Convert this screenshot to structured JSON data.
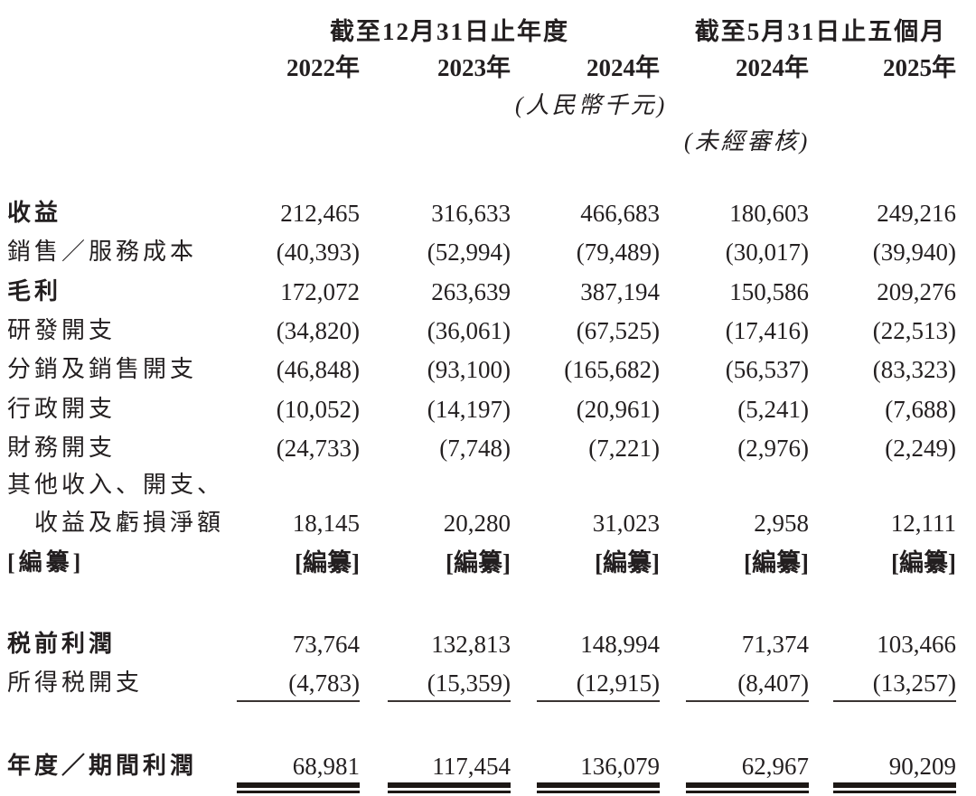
{
  "colors": {
    "text": "#231f20",
    "background": "#ffffff",
    "rule": "#1d1815"
  },
  "table": {
    "group_headers": [
      {
        "label": "截至12月31日止年度",
        "spans_columns": 3
      },
      {
        "label": "截至5月31日止五個月",
        "spans_columns": 2
      }
    ],
    "year_headers": [
      "2022年",
      "2023年",
      "2024年",
      "2024年",
      "2025年"
    ],
    "unit_note": "(人民幣千元)",
    "unaudited_note": "(未經審核)",
    "rows": [
      {
        "label": "收益",
        "bold": true,
        "values": [
          "212,465",
          "316,633",
          "466,683",
          "180,603",
          "249,216"
        ]
      },
      {
        "label": "銷售／服務成本",
        "bold": false,
        "values": [
          "(40,393)",
          "(52,994)",
          "(79,489)",
          "(30,017)",
          "(39,940)"
        ]
      },
      {
        "label": "毛利",
        "bold": true,
        "values": [
          "172,072",
          "263,639",
          "387,194",
          "150,586",
          "209,276"
        ]
      },
      {
        "label": "研發開支",
        "bold": false,
        "values": [
          "(34,820)",
          "(36,061)",
          "(67,525)",
          "(17,416)",
          "(22,513)"
        ]
      },
      {
        "label": "分銷及銷售開支",
        "bold": false,
        "values": [
          "(46,848)",
          "(93,100)",
          "(165,682)",
          "(56,537)",
          "(83,323)"
        ]
      },
      {
        "label": "行政開支",
        "bold": false,
        "values": [
          "(10,052)",
          "(14,197)",
          "(20,961)",
          "(5,241)",
          "(7,688)"
        ]
      },
      {
        "label": "財務開支",
        "bold": false,
        "values": [
          "(24,733)",
          "(7,748)",
          "(7,221)",
          "(2,976)",
          "(2,249)"
        ]
      },
      {
        "label_line1": "其他收入、開支、",
        "label_line2": "收益及虧損淨額",
        "bold": false,
        "values": [
          "18,145",
          "20,280",
          "31,023",
          "2,958",
          "12,111"
        ]
      },
      {
        "label": "[編纂]",
        "bold": true,
        "values": [
          "[編纂]",
          "[編纂]",
          "[編纂]",
          "[編纂]",
          "[編纂]"
        ]
      },
      {
        "label": "税前利潤",
        "bold": true,
        "values": [
          "73,764",
          "132,813",
          "148,994",
          "71,374",
          "103,466"
        ]
      },
      {
        "label": "所得税開支",
        "bold": false,
        "underline": true,
        "values": [
          "(4,783)",
          "(15,359)",
          "(12,915)",
          "(8,407)",
          "(13,257)"
        ]
      },
      {
        "label": "年度／期間利潤",
        "bold": true,
        "double_underline": true,
        "values": [
          "68,981",
          "117,454",
          "136,079",
          "62,967",
          "90,209"
        ]
      }
    ]
  }
}
